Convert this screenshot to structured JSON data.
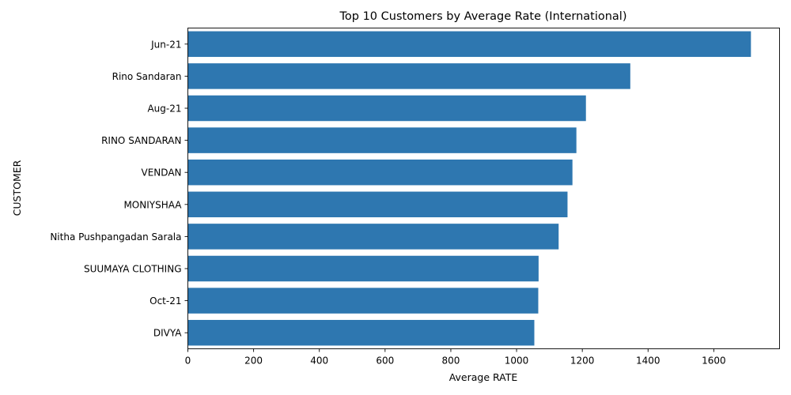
{
  "chart_data": {
    "type": "bar",
    "orientation": "horizontal",
    "title": "Top 10 Customers by Average Rate (International)",
    "xlabel": "Average RATE",
    "ylabel": "CUSTOMER",
    "categories": [
      "Jun-21",
      "Rino Sandaran",
      "Aug-21",
      "RINO SANDARAN",
      "VENDAN",
      "MONIYSHAA",
      "Nitha Pushpangadan Sarala",
      "SUUMAYA CLOTHING",
      "Oct-21",
      "DIVYA"
    ],
    "values": [
      1713,
      1346,
      1211,
      1182,
      1170,
      1155,
      1128,
      1067,
      1066,
      1054
    ],
    "xlim": [
      0,
      1800
    ],
    "xticks": [
      "0",
      "200",
      "400",
      "600",
      "800",
      "1000",
      "1200",
      "1400",
      "1600"
    ],
    "bar_color": "#2e77b0",
    "grid": false
  }
}
